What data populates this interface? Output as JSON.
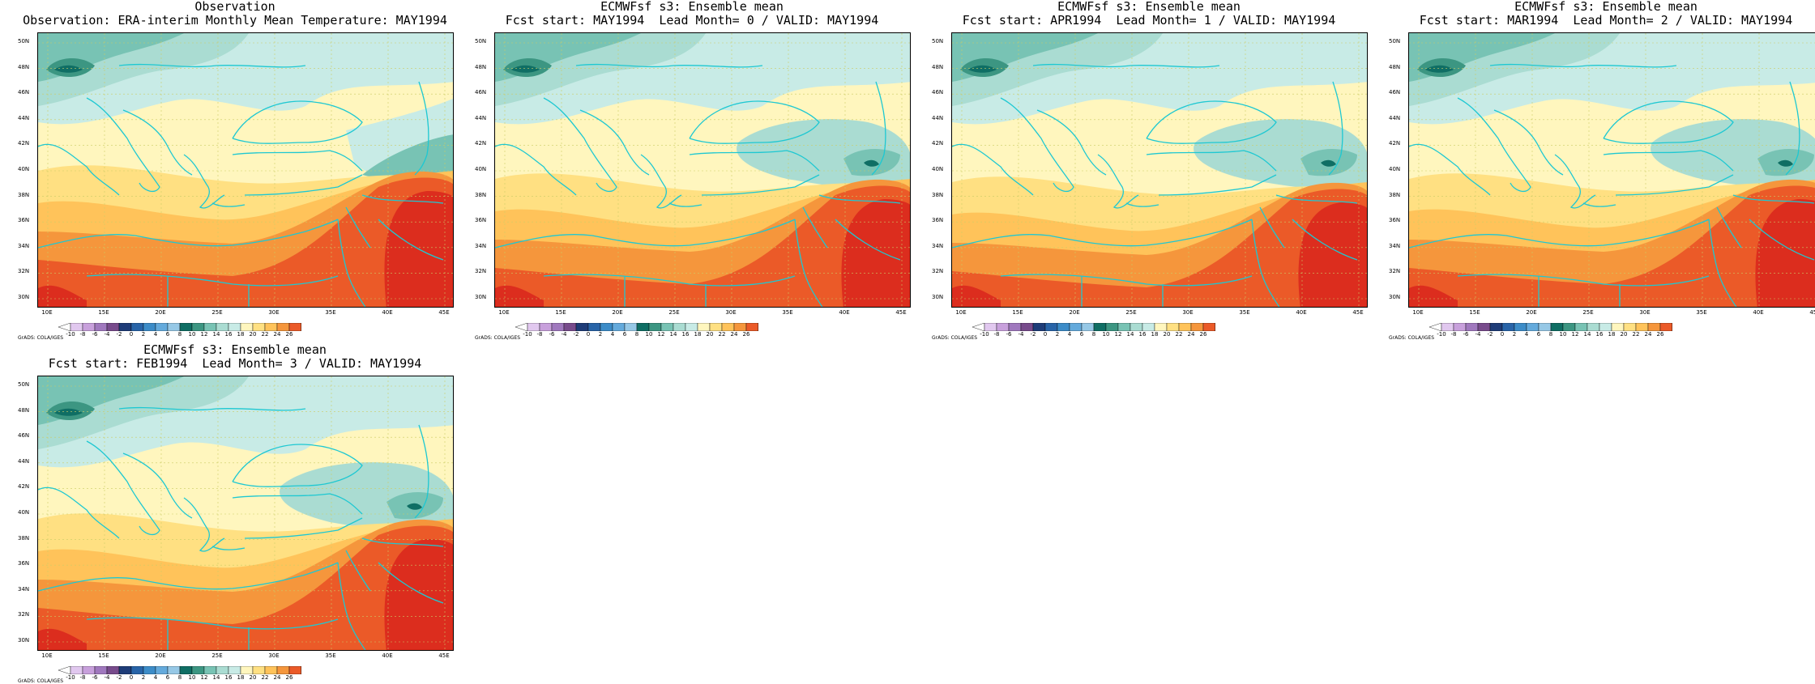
{
  "panels": [
    {
      "title_line1": "Observation",
      "title_line2": "Observation: ERA-interim Monthly Mean Temperature: MAY1994",
      "variant": 0
    },
    {
      "title_line1": "ECMWFsf s3: Ensemble mean",
      "title_line2": "Fcst start: MAY1994  Lead Month= 0 / VALID: MAY1994",
      "variant": 1
    },
    {
      "title_line1": "ECMWFsf s3: Ensemble mean",
      "title_line2": "Fcst start: APR1994  Lead Month= 1 / VALID: MAY1994",
      "variant": 2
    },
    {
      "title_line1": "ECMWFsf s3: Ensemble mean",
      "title_line2": "Fcst start: MAR1994  Lead Month= 2 / VALID: MAY1994",
      "variant": 3
    },
    {
      "title_line1": "ECMWFsf s3: Ensemble mean",
      "title_line2": "Fcst start: FEB1994  Lead Month= 3 / VALID: MAY1994",
      "variant": 4
    }
  ],
  "lat_labels": [
    "50N",
    "48N",
    "46N",
    "44N",
    "42N",
    "40N",
    "38N",
    "36N",
    "34N",
    "32N",
    "30N"
  ],
  "lon_labels": [
    "10E",
    "15E",
    "20E",
    "25E",
    "30E",
    "35E",
    "40E",
    "45E"
  ],
  "legend_credit": "GrADS: COLA/IGES",
  "colorbar": {
    "ticks": [
      "-10",
      "-8",
      "-6",
      "-4",
      "-2",
      "0",
      "2",
      "4",
      "6",
      "8",
      "10",
      "12",
      "14",
      "16",
      "18",
      "20",
      "22",
      "24",
      "26"
    ],
    "colors": [
      "#ffffff",
      "#e1c8ef",
      "#c8a0dc",
      "#a078be",
      "#784b8c",
      "#1e3c78",
      "#2864a8",
      "#3c8cc8",
      "#64aadc",
      "#96c8e6",
      "#0f6e64",
      "#3c9682",
      "#78c3b4",
      "#aadcd2",
      "#c8ebe6",
      "#fff6be",
      "#ffe082",
      "#ffc35a",
      "#f5963c",
      "#eb5a28",
      "#dc2d1e"
    ]
  }
}
